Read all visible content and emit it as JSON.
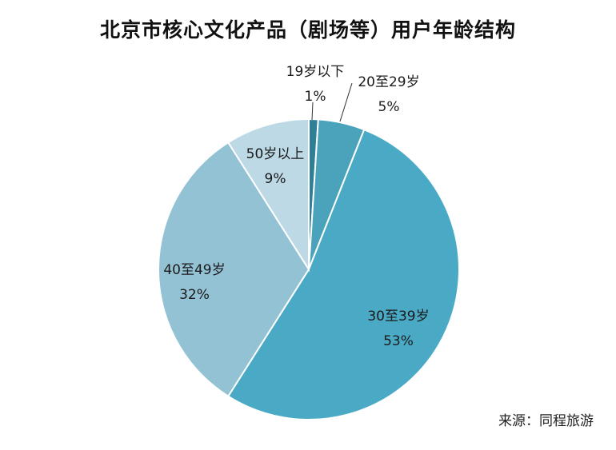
{
  "chart_data": {
    "type": "pie",
    "title": "北京市核心文化产品（剧场等）用户年龄结构",
    "source": "来源：同程旅游",
    "categories": [
      "19岁以下",
      "20至29岁",
      "30至39岁",
      "40至49岁",
      "50岁以上"
    ],
    "values": [
      1,
      5,
      53,
      32,
      9
    ],
    "value_labels": [
      "1%",
      "5%",
      "53%",
      "32%",
      "9%"
    ],
    "colors": [
      "#2f7f96",
      "#4aa3bb",
      "#4aaac6",
      "#93c2d5",
      "#bcd9e5"
    ],
    "start": "12 o'clock, clockwise",
    "legend": "none"
  }
}
